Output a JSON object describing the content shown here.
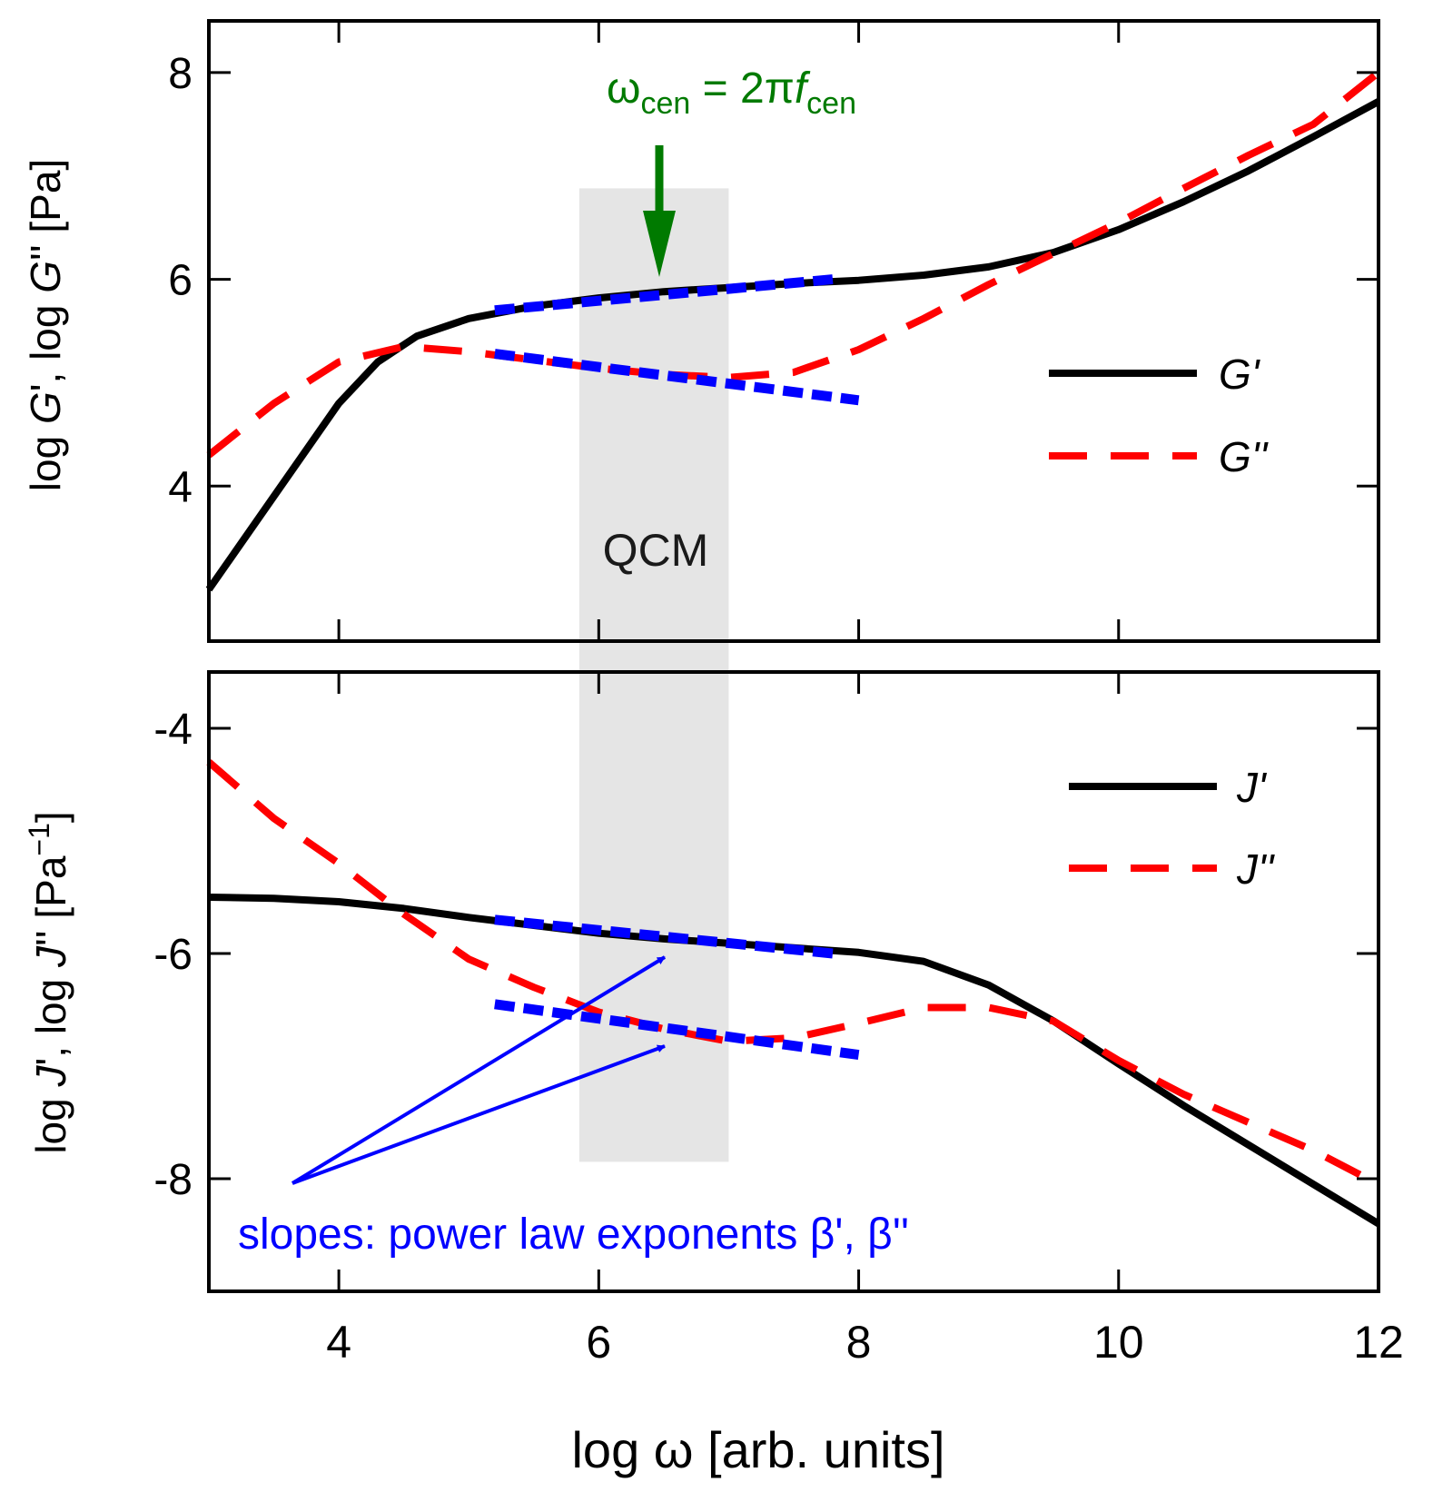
{
  "colors": {
    "black": "#000000",
    "red": "#ff0000",
    "blue": "#0000ff",
    "green": "#007a00",
    "qcm_band": "#e0e0e0"
  },
  "x_axis": {
    "label": "log ω [arb. units]",
    "range": [
      3,
      12
    ],
    "ticks": [
      4,
      6,
      8,
      10,
      12
    ],
    "tick_labels": [
      "4",
      "6",
      "8",
      "10",
      "12"
    ]
  },
  "annotations": {
    "qcm": "QCM",
    "omega_symbol": "ω",
    "omega_sub": "cen",
    "equals": " = 2π",
    "f_symbol": "f",
    "f_sub": "cen",
    "slopes": "slopes: power law exponents β', β''"
  },
  "chart_data": [
    {
      "type": "line",
      "panel": "top",
      "ylabel_parts": [
        "log ",
        "G",
        "', log ",
        "G",
        "'' [Pa]"
      ],
      "ylim": [
        2.5,
        8.5
      ],
      "yticks": [
        4,
        6,
        8
      ],
      "ytick_labels": [
        "4",
        "6",
        "8"
      ],
      "qcm_band_x": [
        5.85,
        7.0
      ],
      "legend_position": "right",
      "series": [
        {
          "name": "G'",
          "style": "solid",
          "color": "#000000",
          "x": [
            3.0,
            3.5,
            4.0,
            4.3,
            4.6,
            5.0,
            5.5,
            6.0,
            6.5,
            7.0,
            7.5,
            8.0,
            8.5,
            9.0,
            9.5,
            10.0,
            10.5,
            11.0,
            11.5,
            12.0
          ],
          "y": [
            3.0,
            3.9,
            4.8,
            5.2,
            5.45,
            5.62,
            5.74,
            5.82,
            5.88,
            5.92,
            5.96,
            5.99,
            6.04,
            6.12,
            6.26,
            6.48,
            6.75,
            7.05,
            7.38,
            7.72
          ]
        },
        {
          "name": "G''",
          "style": "dashed",
          "color": "#ff0000",
          "x": [
            3.0,
            3.5,
            4.0,
            4.5,
            5.0,
            5.5,
            6.0,
            6.5,
            7.0,
            7.5,
            8.0,
            8.5,
            9.0,
            9.5,
            10.0,
            10.5,
            11.0,
            11.5,
            12.0
          ],
          "y": [
            4.3,
            4.8,
            5.2,
            5.35,
            5.3,
            5.22,
            5.14,
            5.08,
            5.05,
            5.1,
            5.32,
            5.62,
            5.95,
            6.25,
            6.55,
            6.88,
            7.2,
            7.5,
            8.0
          ]
        }
      ],
      "fits": [
        {
          "name": "G' fit",
          "color": "#0000ff",
          "x": [
            5.2,
            7.8
          ],
          "y": [
            5.7,
            6.0
          ]
        },
        {
          "name": "G'' fit",
          "color": "#0000ff",
          "x": [
            5.2,
            8.0
          ],
          "y": [
            5.28,
            4.83
          ]
        }
      ]
    },
    {
      "type": "line",
      "panel": "bottom",
      "ylabel_parts": [
        "log ",
        "J",
        "', log ",
        "J",
        "'' [Pa",
        "−1",
        "]"
      ],
      "ylim": [
        -9.0,
        -3.5
      ],
      "yticks": [
        -8,
        -6,
        -4
      ],
      "ytick_labels": [
        "-8",
        "-6",
        "-4"
      ],
      "qcm_band_x": [
        5.85,
        7.0
      ],
      "legend_position": "right",
      "series": [
        {
          "name": "J'",
          "style": "solid",
          "color": "#000000",
          "x": [
            3.0,
            3.5,
            4.0,
            4.5,
            5.0,
            5.5,
            6.0,
            6.5,
            7.0,
            7.5,
            8.0,
            8.5,
            9.0,
            9.5,
            10.0,
            10.5,
            11.0,
            11.5,
            12.0
          ],
          "y": [
            -5.5,
            -5.51,
            -5.54,
            -5.6,
            -5.68,
            -5.75,
            -5.82,
            -5.87,
            -5.91,
            -5.95,
            -5.99,
            -6.07,
            -6.28,
            -6.6,
            -6.98,
            -7.35,
            -7.7,
            -8.05,
            -8.4
          ]
        },
        {
          "name": "J''",
          "style": "dashed",
          "color": "#ff0000",
          "x": [
            3.0,
            3.5,
            4.0,
            4.5,
            5.0,
            5.5,
            6.0,
            6.5,
            7.0,
            7.5,
            8.0,
            8.5,
            9.0,
            9.5,
            10.0,
            10.5,
            11.0,
            11.5,
            12.0
          ],
          "y": [
            -4.3,
            -4.8,
            -5.2,
            -5.65,
            -6.05,
            -6.3,
            -6.52,
            -6.67,
            -6.78,
            -6.75,
            -6.62,
            -6.48,
            -6.48,
            -6.6,
            -6.95,
            -7.25,
            -7.5,
            -7.75,
            -8.05
          ]
        }
      ],
      "fits": [
        {
          "name": "J' fit",
          "color": "#0000ff",
          "x": [
            5.2,
            7.8
          ],
          "y": [
            -5.7,
            -6.0
          ]
        },
        {
          "name": "J'' fit",
          "color": "#0000ff",
          "x": [
            5.2,
            8.0
          ],
          "y": [
            -6.45,
            -6.9
          ]
        }
      ]
    }
  ]
}
